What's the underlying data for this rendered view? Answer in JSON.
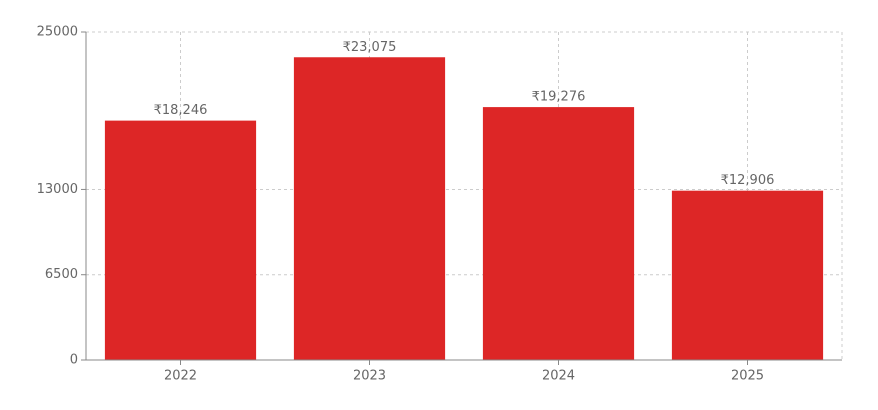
{
  "chart_data": {
    "type": "bar",
    "categories": [
      "2022",
      "2023",
      "2024",
      "2025"
    ],
    "values": [
      18246,
      23075,
      19276,
      12906
    ],
    "value_labels": [
      "₹18,246",
      "₹23,075",
      "₹19,276",
      "₹12,906"
    ],
    "color": "#dd2626",
    "ylim": [
      0,
      25000
    ],
    "yticks": [
      0,
      6500,
      13000,
      25000
    ],
    "grid": true
  }
}
